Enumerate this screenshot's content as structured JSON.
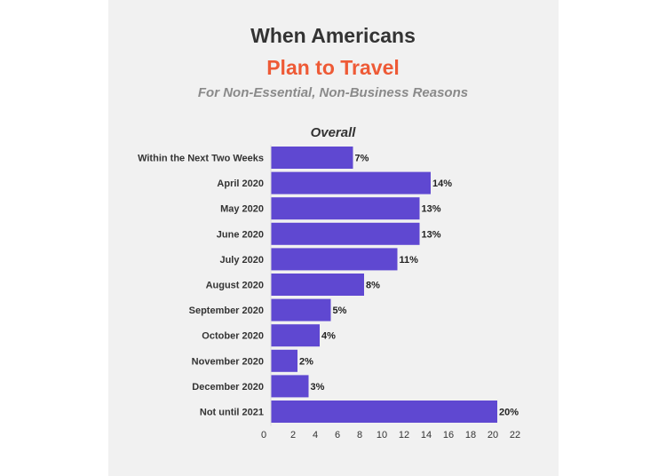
{
  "header": {
    "title_line1": "When Americans",
    "title_line2": "Plan to Travel",
    "subtitle": "For Non-Essential, Non-Business Reasons"
  },
  "colors": {
    "bar": "#5f48d1",
    "accent": "#ee5a36",
    "background": "#f1f1f1"
  },
  "chart_data": {
    "type": "bar",
    "orientation": "horizontal",
    "title": "Overall",
    "categories": [
      "Within the Next Two Weeks",
      "April 2020",
      "May 2020",
      "June 2020",
      "July 2020",
      "August 2020",
      "September 2020",
      "October 2020",
      "November 2020",
      "December 2020",
      "Not until 2021"
    ],
    "values": [
      7,
      14,
      13,
      13,
      11,
      8,
      5,
      4,
      2,
      3,
      20
    ],
    "value_labels": [
      "7%",
      "14%",
      "13%",
      "13%",
      "11%",
      "8%",
      "5%",
      "4%",
      "2%",
      "3%",
      "20%"
    ],
    "xlim": [
      0,
      22
    ],
    "xticks": [
      0,
      2,
      4,
      6,
      8,
      10,
      12,
      14,
      16,
      18,
      20,
      22
    ],
    "xlabel": "",
    "ylabel": "",
    "grid": false
  }
}
